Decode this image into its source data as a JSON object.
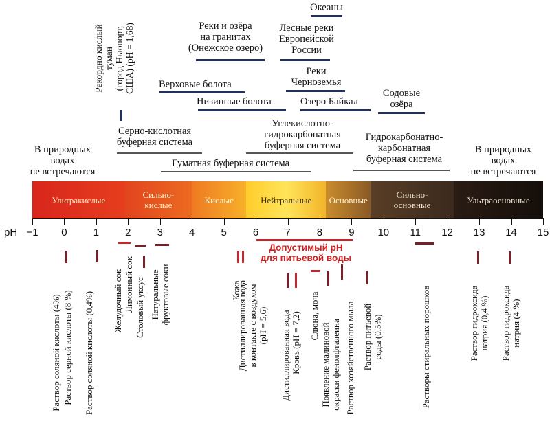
{
  "top": {
    "oceans": "Океаны",
    "rivers_granite": [
      "Реки и озёра",
      "на гранитах",
      "(Онежское озеро)"
    ],
    "forest_rivers": [
      "Лесные реки",
      "Европейской",
      "России"
    ],
    "rivers_chernozem": [
      "Реки",
      "Черноземья"
    ],
    "upland_bogs": "Верховые болота",
    "lowland_bogs": "Низинные болота",
    "baikal": "Озеро Байкал",
    "soda_lakes": [
      "Содовые",
      "озёра"
    ],
    "fog": [
      "Рекордно кислый",
      "туман",
      "(город Ньюпорт,",
      "США) (pH = 1,68)"
    ],
    "sulfuric_buffer": [
      "Серно-кислотная",
      "буферная система"
    ],
    "carbonic_buffer": [
      "Углекислотно-",
      "гидрокарбонатная",
      "буферная система"
    ],
    "hydrocarbonate_buffer": [
      "Гидрокарбонатно-",
      "карбонатная",
      "буферная система"
    ],
    "humate_buffer": "Гуматная буферная система",
    "not_found_left": [
      "В природных",
      "водах",
      "не встречаются"
    ],
    "not_found_right": [
      "В природных",
      "водах",
      "не встречаются"
    ]
  },
  "scale": {
    "axis_label": "pH",
    "ticks": [
      "−1",
      "0",
      "1",
      "2",
      "3",
      "4",
      "5",
      "6",
      "7",
      "8",
      "9",
      "10",
      "11",
      "12",
      "13",
      "14",
      "15"
    ],
    "bands": [
      {
        "label": [
          "Ультракислые"
        ],
        "from": -1,
        "to": 1.9
      },
      {
        "label": [
          "Сильно-",
          "кислые"
        ],
        "from": 1.9,
        "to": 4
      },
      {
        "label": [
          "Кислые"
        ],
        "from": 4,
        "to": 5.7
      },
      {
        "label": [
          "Нейтральные"
        ],
        "from": 5.7,
        "to": 8.2
      },
      {
        "label": [
          "Основные"
        ],
        "from": 8.2,
        "to": 9.6
      },
      {
        "label": [
          "Сильно-",
          "основные"
        ],
        "from": 9.6,
        "to": 12.2
      },
      {
        "label": [
          "Ультраосновные"
        ],
        "from": 12.2,
        "to": 15
      }
    ],
    "colors": {
      "ultra_acid": "#e33b1f",
      "strong_acid": "#ea5a1e",
      "acid": "#ee8a22",
      "neutral": "#ffd82a",
      "basic": "#b07a2a",
      "strong_basic": "#4a3424",
      "ultra_basic": "#1d1410"
    }
  },
  "drinking_water": {
    "label": [
      "Допустимый pH",
      "для питьевой воды"
    ],
    "ph_range": [
      6,
      9
    ]
  },
  "bottom": {
    "hcl4": "Раствор соляной кислоты (4%)",
    "h2so4": "Раствор серной кислоты (8 %)",
    "hcl04": "Раствор соляной кислоты (0,4%)",
    "gastric": "Желудочный сок",
    "lemon": "Лимонный сок",
    "vinegar": "Столовый уксус",
    "fruit": [
      "Натуральные",
      "фруктовые соки"
    ],
    "skin": "Кожа",
    "distilled_air": [
      "Дистиллированная вода",
      "в контакте с воздухом",
      "(pH = 5,6)"
    ],
    "distilled": "Дистиллированная вода",
    "blood": "Кровь (pH = 7,2)",
    "saliva": [
      "Слюна, моча"
    ],
    "phenolphthalein": [
      "Появление малиновой",
      "окраски фенолфталеина"
    ],
    "soap": "Раствор хозяйственного мыла",
    "soda": [
      "Раствор питьевой",
      "соды (0,5%)"
    ],
    "detergents": "Растворы стиральных порошков",
    "naoh04": [
      "Раствор гидроксида",
      "натрия (0,4 %)"
    ],
    "naoh4": [
      "Раствор гидроксида",
      "натрия (4 %)"
    ]
  }
}
